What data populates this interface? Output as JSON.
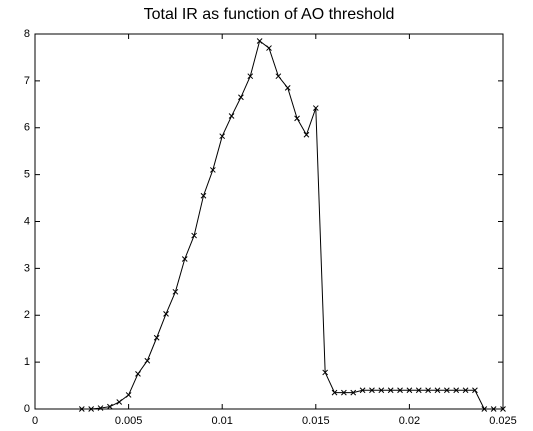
{
  "chart_data": {
    "type": "line",
    "title": "Total IR as function of AO threshold",
    "x": [
      0.0025,
      0.003,
      0.0035,
      0.004,
      0.0045,
      0.005,
      0.0055,
      0.006,
      0.0065,
      0.007,
      0.0075,
      0.008,
      0.0085,
      0.009,
      0.0095,
      0.01,
      0.0105,
      0.011,
      0.0115,
      0.012,
      0.0125,
      0.013,
      0.0135,
      0.014,
      0.0145,
      0.015,
      0.0155,
      0.016,
      0.0165,
      0.017,
      0.0175,
      0.018,
      0.0185,
      0.019,
      0.0195,
      0.02,
      0.0205,
      0.021,
      0.0215,
      0.022,
      0.0225,
      0.023,
      0.0235,
      0.024,
      0.0245,
      0.025
    ],
    "values": [
      0,
      0,
      0.02,
      0.05,
      0.15,
      0.3,
      0.75,
      1.03,
      1.52,
      2.03,
      2.5,
      3.2,
      3.7,
      4.55,
      5.1,
      5.82,
      6.25,
      6.65,
      7.1,
      7.85,
      7.7,
      7.1,
      6.85,
      6.2,
      5.85,
      6.42,
      0.78,
      0.35,
      0.35,
      0.35,
      0.4,
      0.4,
      0.4,
      0.4,
      0.4,
      0.4,
      0.4,
      0.4,
      0.4,
      0.4,
      0.4,
      0.4,
      0.4,
      0,
      0,
      0
    ],
    "color": "#000000",
    "marker": "x",
    "xlim": [
      0,
      0.025
    ],
    "xticks": [
      0,
      0.005,
      0.01,
      0.015,
      0.02,
      0.025
    ],
    "ylim": [
      0,
      8
    ],
    "yticks": [
      0,
      1,
      2,
      3,
      4,
      5,
      6,
      7,
      8
    ],
    "grid": false
  }
}
